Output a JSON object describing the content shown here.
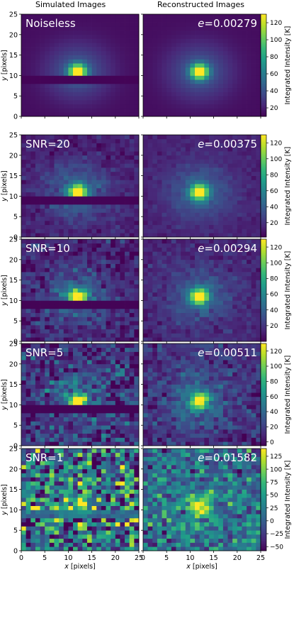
{
  "headers": {
    "left": "Simulated Images",
    "right": "Reconstructed Images"
  },
  "chart_data": {
    "type": "heatmap",
    "grid_size": 25,
    "xlabel_var": "x",
    "ylabel_var": "y",
    "axis_unit": " [pixels]",
    "xlim": [
      0,
      25
    ],
    "ylim": [
      0,
      25
    ],
    "x_ticks": [
      "0",
      "5",
      "10",
      "15",
      "20",
      "25"
    ],
    "y_ticks": [
      "0",
      "5",
      "10",
      "15",
      "20",
      "25"
    ],
    "colorbar_label": "Integrated Intensity [K]",
    "colormap": "viridis",
    "colors": {
      "viridis_low": "#440154",
      "viridis_mid": "#21918c",
      "viridis_high": "#fde725"
    },
    "source_peak": {
      "x": 12,
      "y": 11
    },
    "masked_rows": [
      8,
      9
    ],
    "error_prefix": "e",
    "rows": [
      {
        "label": "Noiseless",
        "error": "=0.00279",
        "cmin": 10,
        "cmax": 130,
        "cbar_ticks": [
          "20",
          "40",
          "60",
          "80",
          "100",
          "120"
        ],
        "cbar_values": [
          20,
          40,
          60,
          80,
          100,
          120
        ]
      },
      {
        "label": "SNR=20",
        "error": "=0.00375",
        "cmin": 2,
        "cmax": 130,
        "cbar_ticks": [
          "20",
          "40",
          "60",
          "80",
          "100",
          "120"
        ],
        "cbar_values": [
          20,
          40,
          60,
          80,
          100,
          120
        ]
      },
      {
        "label": "SNR=10",
        "error": "=0.00294",
        "cmin": 0,
        "cmax": 130,
        "cbar_ticks": [
          "20",
          "40",
          "60",
          "80",
          "100",
          "120"
        ],
        "cbar_values": [
          20,
          40,
          60,
          80,
          100,
          120
        ]
      },
      {
        "label": "SNR=5",
        "error": "=0.00511",
        "cmin": -5,
        "cmax": 130,
        "cbar_ticks": [
          "0",
          "20",
          "40",
          "60",
          "80",
          "100",
          "120"
        ],
        "cbar_values": [
          0,
          20,
          40,
          60,
          80,
          100,
          120
        ]
      },
      {
        "label": "SNR=1",
        "error": "=0.01582",
        "cmin": -58,
        "cmax": 140,
        "cbar_ticks": [
          "−50",
          "−25",
          "0",
          "25",
          "50",
          "75",
          "100",
          "125"
        ],
        "cbar_values": [
          -50,
          -25,
          0,
          25,
          50,
          75,
          100,
          125
        ]
      }
    ]
  }
}
